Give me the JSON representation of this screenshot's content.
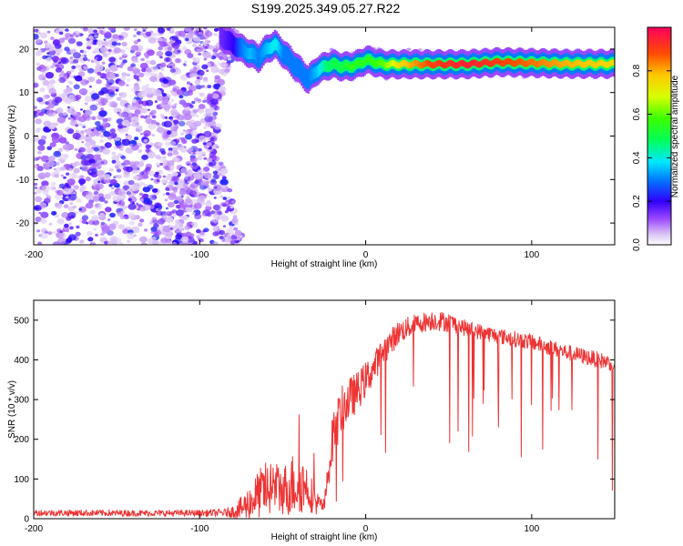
{
  "title": "S199.2025.349.05.27.R22",
  "chart_data": [
    {
      "type": "heatmap",
      "xlabel": "Height of straight line (km)",
      "ylabel": "Frequency (Hz)",
      "xlim": [
        -200,
        150
      ],
      "ylim": [
        -25,
        25
      ],
      "xticks": [
        -200,
        -100,
        0,
        100
      ],
      "yticks": [
        -20,
        -10,
        0,
        10,
        20
      ],
      "colorbar": {
        "label": "Normalized spectral amplitude",
        "range": [
          0.0,
          1.0
        ],
        "ticks": [
          "0.0",
          "0.2",
          "0.4",
          "0.6",
          "0.8"
        ],
        "tick_values": [
          0.0,
          0.2,
          0.4,
          0.6,
          0.8
        ]
      },
      "ridge": {
        "x": [
          -88,
          -80,
          -75,
          -70,
          -65,
          -60,
          -55,
          -50,
          -45,
          -40,
          -35,
          -30,
          -25,
          -20,
          -15,
          -10,
          -5,
          0,
          10,
          20,
          40,
          60,
          80,
          100,
          120,
          150
        ],
        "freq": [
          23,
          21,
          20,
          19,
          18,
          20,
          21,
          19,
          17,
          15,
          13,
          15,
          16,
          16.5,
          16,
          16,
          16.5,
          17.5,
          16.5,
          16.5,
          16.5,
          16.5,
          17,
          16.8,
          16.6,
          16.6
        ],
        "amplitude": [
          0.15,
          0.2,
          0.3,
          0.35,
          0.3,
          0.35,
          0.4,
          0.3,
          0.3,
          0.3,
          0.3,
          0.35,
          0.45,
          0.5,
          0.5,
          0.55,
          0.55,
          0.55,
          0.6,
          0.75,
          0.9,
          0.95,
          0.9,
          0.85,
          0.8,
          0.75
        ]
      },
      "noise_region": {
        "x_from": -200,
        "x_to": -75,
        "freq_from": -25,
        "freq_to": 25,
        "amplitude_max": 0.2
      }
    },
    {
      "type": "line",
      "xlabel": "Height of straight line (km)",
      "ylabel": "SNR (10 * v/v)",
      "xlim": [
        -200,
        150
      ],
      "ylim": [
        0,
        550
      ],
      "xticks": [
        -200,
        -100,
        0,
        100
      ],
      "yticks": [
        0,
        100,
        200,
        300,
        400,
        500
      ],
      "color": "#ee3333",
      "envelope": {
        "x": [
          -200,
          -150,
          -100,
          -85,
          -80,
          -75,
          -70,
          -65,
          -60,
          -55,
          -50,
          -45,
          -40,
          -35,
          -30,
          -25,
          -20,
          -15,
          -10,
          -5,
          0,
          5,
          10,
          20,
          30,
          40,
          50,
          60,
          80,
          100,
          120,
          140,
          150
        ],
        "baseline": [
          15,
          14,
          14,
          15,
          18,
          25,
          40,
          60,
          75,
          80,
          70,
          85,
          90,
          80,
          40,
          30,
          200,
          270,
          300,
          320,
          350,
          380,
          420,
          470,
          490,
          500,
          495,
          480,
          460,
          445,
          420,
          400,
          390
        ],
        "spread": [
          8,
          8,
          8,
          10,
          15,
          30,
          45,
          60,
          70,
          70,
          60,
          80,
          80,
          60,
          30,
          20,
          60,
          60,
          55,
          50,
          45,
          40,
          35,
          30,
          25,
          25,
          25,
          20,
          20,
          20,
          20,
          20,
          20
        ]
      }
    }
  ]
}
